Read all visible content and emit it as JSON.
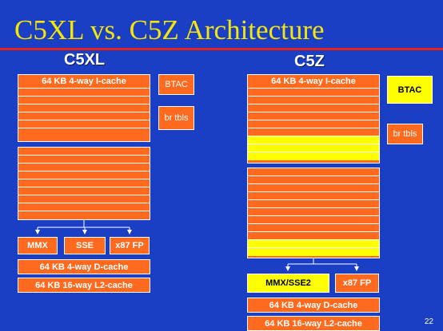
{
  "title": "C5XL vs. C5Z Architecture",
  "left": {
    "heading": "C5XL",
    "icache_label": "64 KB  4-way I-cache",
    "btac": "BTAC",
    "br_tbls": "br tbls",
    "units": [
      "MMX",
      "SSE",
      "x87 FP"
    ],
    "dcache": "64 KB  4-way D-cache",
    "l2cache": "64 KB  16-way L2-cache"
  },
  "right": {
    "heading": "C5Z",
    "icache_label": "64 KB  4-way I-cache",
    "btac": "BTAC",
    "br_tbls": "br tbls",
    "units": [
      "MMX/SSE2",
      "x87 FP"
    ],
    "dcache": "64 KB  4-way D-cache",
    "l2cache": "64 KB  16-way L2-cache"
  },
  "colors": {
    "background": "#1a3fc4",
    "title": "#f5e60a",
    "rule": "#e8221b",
    "block": "#ff6a1f",
    "highlight": "#ffff00"
  },
  "page_number": "22"
}
